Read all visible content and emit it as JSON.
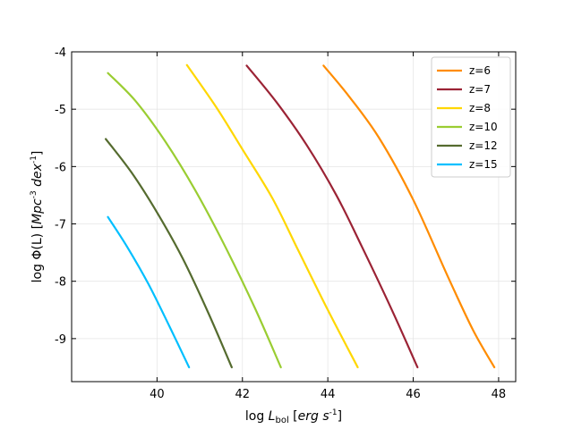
{
  "chart_data": {
    "type": "line",
    "title": "",
    "xlabel": "log L_bol [erg s^-1]",
    "ylabel": "log Φ(L) [Mpc^-3 dex^-1]",
    "xlim": [
      38.0,
      48.4
    ],
    "ylim": [
      -9.75,
      -4.0
    ],
    "xticks": [
      40,
      42,
      44,
      46,
      48
    ],
    "yticks": [
      -4,
      -5,
      -6,
      -7,
      -8,
      -9
    ],
    "grid": true,
    "legend_position": "top-right",
    "series": [
      {
        "name": "z=6",
        "color": "#ff8c00",
        "x": [
          43.9,
          44.5,
          45.2,
          46.0,
          46.8,
          47.4,
          47.9
        ],
        "y": [
          -4.24,
          -4.78,
          -5.5,
          -6.58,
          -7.9,
          -8.85,
          -9.5
        ]
      },
      {
        "name": "z=7",
        "color": "#9b2335",
        "x": [
          42.1,
          42.8,
          43.5,
          44.2,
          44.8,
          45.5,
          46.1
        ],
        "y": [
          -4.24,
          -4.88,
          -5.62,
          -6.5,
          -7.4,
          -8.5,
          -9.5
        ]
      },
      {
        "name": "z=8",
        "color": "#ffd700",
        "x": [
          40.7,
          41.4,
          42.0,
          42.7,
          43.3,
          44.0,
          44.7
        ],
        "y": [
          -4.23,
          -4.98,
          -5.7,
          -6.55,
          -7.45,
          -8.5,
          -9.5
        ]
      },
      {
        "name": "z=10",
        "color": "#9acd32",
        "x": [
          38.85,
          39.5,
          40.2,
          40.9,
          41.6,
          42.3,
          42.9
        ],
        "y": [
          -4.37,
          -4.86,
          -5.57,
          -6.42,
          -7.4,
          -8.48,
          -9.5
        ]
      },
      {
        "name": "z=12",
        "color": "#556b2f",
        "x": [
          38.8,
          39.4,
          40.0,
          40.6,
          41.2,
          41.75
        ],
        "y": [
          -5.52,
          -6.1,
          -6.8,
          -7.6,
          -8.55,
          -9.5
        ]
      },
      {
        "name": "z=15",
        "color": "#00bfff",
        "x": [
          38.85,
          39.3,
          39.8,
          40.3,
          40.75
        ],
        "y": [
          -6.88,
          -7.4,
          -8.05,
          -8.8,
          -9.5
        ]
      }
    ]
  }
}
